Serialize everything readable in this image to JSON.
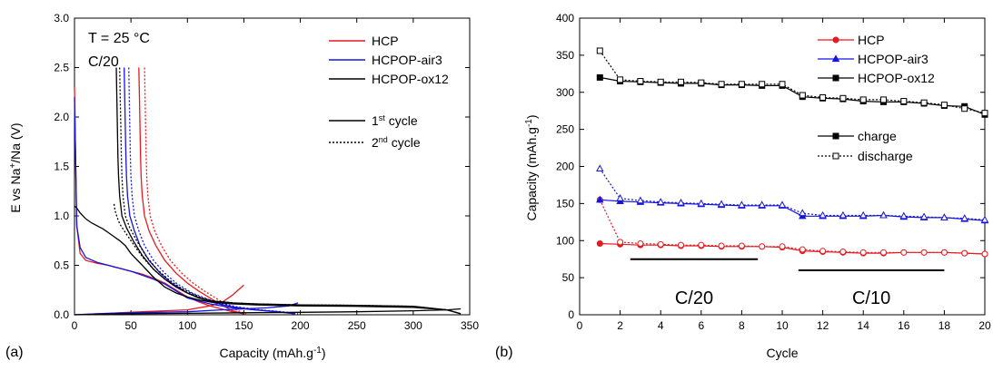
{
  "figure": {
    "panel_labels": [
      "(a)",
      "(b)"
    ]
  },
  "chart_data": [
    {
      "type": "line",
      "panel": "(a)",
      "xlabel": "Capacity (mAh.g",
      "xlabel_sup": "-1",
      "xlabel_end": ")",
      "ylabel_parts": [
        "E vs Na",
        "+",
        "/Na (V)"
      ],
      "xlim": [
        0,
        350
      ],
      "ylim": [
        0,
        3.0
      ],
      "x_ticks": [
        0,
        50,
        100,
        150,
        200,
        250,
        300,
        350
      ],
      "y_ticks": [
        "0.0",
        "0.5",
        "1.0",
        "1.5",
        "2.0",
        "2.5",
        "3.0"
      ],
      "annotations": [
        "T = 25 °C",
        "C/20"
      ],
      "legend_placement": "top-right",
      "legend_series": [
        {
          "name": "HCP",
          "color": "#e8191f"
        },
        {
          "name": "HCPOP-air3",
          "color": "#1414e0"
        },
        {
          "name": "HCPOP-ox12",
          "color": "#000000"
        }
      ],
      "legend_styles": [
        {
          "name": "1",
          "sup": "st",
          "rest": " cycle",
          "dash": "solid"
        },
        {
          "name": "2",
          "sup": "nd",
          "rest": " cycle",
          "dash": "dotted"
        }
      ],
      "series": [
        {
          "name": "HCP",
          "cycle": 1,
          "color": "#e8191f",
          "dash": "solid",
          "x": [
            0,
            2,
            5,
            10,
            20,
            30,
            40,
            50,
            60,
            70,
            80,
            90,
            100,
            110,
            120,
            130,
            140,
            150
          ],
          "y": [
            2.3,
            0.9,
            0.62,
            0.55,
            0.52,
            0.5,
            0.47,
            0.44,
            0.41,
            0.37,
            0.32,
            0.25,
            0.18,
            0.13,
            0.09,
            0.06,
            0.03,
            0.01
          ]
        },
        {
          "name": "HCP",
          "cycle": 1,
          "color": "#e8191f",
          "dash": "solid",
          "x": [
            0,
            10,
            20,
            40,
            60,
            80,
            100,
            110,
            120,
            130,
            140,
            150
          ],
          "y": [
            0.0,
            0.005,
            0.01,
            0.02,
            0.03,
            0.04,
            0.05,
            0.07,
            0.09,
            0.12,
            0.2,
            0.3
          ]
        },
        {
          "name": "HCP",
          "cycle": 1,
          "color": "#e8191f",
          "dash": "solid",
          "x": [
            57,
            57.5,
            58,
            58.5,
            59,
            60,
            62,
            66,
            72,
            80,
            90,
            100,
            110,
            120,
            130,
            140,
            150
          ],
          "y": [
            2.5,
            2.2,
            1.9,
            1.6,
            1.4,
            1.2,
            1.0,
            0.85,
            0.7,
            0.55,
            0.42,
            0.32,
            0.24,
            0.17,
            0.1,
            0.04,
            0.01
          ]
        },
        {
          "name": "HCP",
          "cycle": 2,
          "color": "#e8191f",
          "dash": "dotted",
          "x": [
            62,
            62.5,
            63,
            63.5,
            64,
            65,
            67,
            71,
            77,
            85,
            95,
            105,
            115,
            125,
            135,
            145,
            152
          ],
          "y": [
            2.5,
            2.2,
            1.9,
            1.6,
            1.4,
            1.2,
            1.0,
            0.85,
            0.7,
            0.55,
            0.42,
            0.32,
            0.24,
            0.17,
            0.1,
            0.04,
            0.01
          ]
        },
        {
          "name": "HCPOP-air3",
          "cycle": 1,
          "color": "#1414e0",
          "dash": "solid",
          "x": [
            0,
            2,
            5,
            10,
            20,
            30,
            40,
            50,
            60,
            70,
            80,
            90,
            100,
            120,
            140,
            160,
            180,
            195
          ],
          "y": [
            2.2,
            0.9,
            0.68,
            0.58,
            0.53,
            0.5,
            0.47,
            0.44,
            0.4,
            0.36,
            0.31,
            0.24,
            0.17,
            0.11,
            0.07,
            0.05,
            0.03,
            0.01
          ]
        },
        {
          "name": "HCPOP-air3",
          "cycle": 1,
          "color": "#1414e0",
          "dash": "solid",
          "x": [
            0,
            20,
            50,
            100,
            130,
            150,
            170,
            190,
            198
          ],
          "y": [
            0.0,
            0.01,
            0.02,
            0.03,
            0.05,
            0.06,
            0.07,
            0.09,
            0.12
          ]
        },
        {
          "name": "HCPOP-air3",
          "cycle": 1,
          "color": "#1414e0",
          "dash": "solid",
          "x": [
            44,
            44.5,
            45,
            45.5,
            46,
            47,
            49,
            53,
            58,
            66,
            76,
            86,
            100,
            120,
            140,
            160,
            180,
            195
          ],
          "y": [
            2.5,
            2.2,
            1.9,
            1.6,
            1.4,
            1.2,
            1.0,
            0.85,
            0.7,
            0.55,
            0.42,
            0.32,
            0.22,
            0.13,
            0.08,
            0.05,
            0.03,
            0.01
          ]
        },
        {
          "name": "HCPOP-air3",
          "cycle": 2,
          "color": "#1414e0",
          "dash": "dotted",
          "x": [
            48,
            48.5,
            49,
            49.5,
            50,
            51,
            53,
            57,
            62,
            70,
            80,
            90,
            104,
            124,
            144,
            164,
            184,
            198
          ],
          "y": [
            2.5,
            2.2,
            1.9,
            1.6,
            1.4,
            1.2,
            1.0,
            0.85,
            0.7,
            0.55,
            0.42,
            0.32,
            0.22,
            0.13,
            0.08,
            0.05,
            0.03,
            0.01
          ]
        },
        {
          "name": "HCPOP-ox12",
          "cycle": 1,
          "color": "#000000",
          "dash": "solid",
          "x": [
            0,
            2,
            5,
            10,
            15,
            20,
            25,
            30,
            35,
            40,
            45,
            50,
            60,
            70,
            80,
            90,
            100,
            110,
            120,
            140,
            160,
            200,
            250,
            300,
            330,
            342
          ],
          "y": [
            1.1,
            1.08,
            1.03,
            0.97,
            0.93,
            0.9,
            0.87,
            0.83,
            0.79,
            0.75,
            0.7,
            0.62,
            0.5,
            0.38,
            0.28,
            0.22,
            0.18,
            0.15,
            0.13,
            0.11,
            0.1,
            0.09,
            0.085,
            0.075,
            0.05,
            0.01
          ]
        },
        {
          "name": "HCPOP-ox12",
          "cycle": 1,
          "color": "#000000",
          "dash": "solid",
          "x": [
            37,
            37.5,
            38,
            38.5,
            39,
            40,
            42,
            46,
            52,
            60,
            70,
            80,
            90,
            100,
            110,
            120,
            140,
            160,
            200,
            250,
            300,
            330,
            342
          ],
          "y": [
            2.5,
            2.2,
            1.9,
            1.6,
            1.4,
            1.2,
            1.0,
            0.88,
            0.75,
            0.6,
            0.46,
            0.36,
            0.28,
            0.22,
            0.17,
            0.14,
            0.12,
            0.11,
            0.1,
            0.095,
            0.085,
            0.05,
            0.01
          ]
        },
        {
          "name": "HCPOP-ox12",
          "cycle": 1,
          "color": "#000000",
          "dash": "solid",
          "x": [
            0,
            50,
            100,
            150,
            200,
            250,
            300,
            330,
            342
          ],
          "y": [
            0.0,
            0.01,
            0.015,
            0.02,
            0.025,
            0.03,
            0.04,
            0.05,
            0.06
          ]
        },
        {
          "name": "HCPOP-ox12",
          "cycle": 2,
          "color": "#000000",
          "dash": "dotted",
          "x": [
            35,
            36,
            38,
            40,
            44,
            50,
            56,
            62,
            70,
            80,
            90,
            100,
            110,
            120,
            140,
            160,
            200,
            250,
            300,
            330,
            342
          ],
          "y": [
            1.12,
            1.05,
            0.98,
            0.92,
            0.85,
            0.75,
            0.65,
            0.56,
            0.46,
            0.36,
            0.28,
            0.22,
            0.17,
            0.14,
            0.12,
            0.11,
            0.1,
            0.095,
            0.085,
            0.05,
            0.01
          ]
        },
        {
          "name": "HCPOP-ox12",
          "cycle": 2,
          "color": "#000000",
          "dash": "dotted",
          "x": [
            40,
            40.5,
            41,
            41.5,
            42,
            43,
            45,
            49,
            55,
            63,
            73,
            83,
            93,
            103,
            113,
            123,
            140
          ],
          "y": [
            2.5,
            2.2,
            1.9,
            1.6,
            1.4,
            1.2,
            1.0,
            0.88,
            0.75,
            0.6,
            0.46,
            0.36,
            0.28,
            0.22,
            0.17,
            0.14,
            0.12
          ]
        }
      ]
    },
    {
      "type": "line",
      "panel": "(b)",
      "xlabel": "Cycle",
      "ylabel": "Capacity (mAh.g",
      "ylabel_sup": "-1",
      "ylabel_end": ")",
      "xlim": [
        0,
        20
      ],
      "ylim": [
        0,
        400
      ],
      "x_ticks": [
        0,
        2,
        4,
        6,
        8,
        10,
        12,
        14,
        16,
        18,
        20
      ],
      "y_ticks": [
        0,
        50,
        100,
        150,
        200,
        250,
        300,
        350,
        400
      ],
      "legend_placement": "top-right",
      "legend_series": [
        {
          "name": "HCP",
          "color": "#e8191f",
          "marker": "circle"
        },
        {
          "name": "HCPOP-air3",
          "color": "#1414e0",
          "marker": "triangle"
        },
        {
          "name": "HCPOP-ox12",
          "color": "#000000",
          "marker": "square"
        }
      ],
      "legend_styles": [
        {
          "name": "charge",
          "dash": "solid",
          "filled": true
        },
        {
          "name": "discharge",
          "dash": "dotted",
          "filled": false
        }
      ],
      "rate_labels": [
        {
          "text": "C/20",
          "x_start": 2.5,
          "x_end": 8.8,
          "y": 75
        },
        {
          "text": "C/10",
          "x_start": 10.8,
          "x_end": 18.0,
          "y": 60
        }
      ],
      "x": [
        1,
        2,
        3,
        4,
        5,
        6,
        7,
        8,
        9,
        10,
        11,
        12,
        13,
        14,
        15,
        16,
        17,
        18,
        19,
        20
      ],
      "series": [
        {
          "name": "HCP",
          "type": "charge",
          "color": "#e8191f",
          "marker": "circle",
          "values": [
            96,
            95,
            94,
            94,
            93,
            93,
            92,
            92,
            92,
            91,
            86,
            85,
            84,
            83,
            83,
            84,
            84,
            84,
            83,
            82
          ]
        },
        {
          "name": "HCP",
          "type": "discharge",
          "color": "#e8191f",
          "marker": "circle",
          "values": [
            155,
            98,
            96,
            95,
            94,
            94,
            93,
            93,
            92,
            92,
            88,
            86,
            85,
            84,
            84,
            84,
            84,
            84,
            83,
            82
          ]
        },
        {
          "name": "HCPOP-air3",
          "type": "charge",
          "color": "#1414e0",
          "marker": "triangle",
          "values": [
            155,
            153,
            152,
            151,
            150,
            149,
            148,
            147,
            147,
            147,
            133,
            133,
            133,
            133,
            134,
            132,
            131,
            131,
            129,
            127
          ]
        },
        {
          "name": "HCPOP-air3",
          "type": "discharge",
          "color": "#1414e0",
          "marker": "triangle",
          "values": [
            197,
            157,
            154,
            152,
            151,
            150,
            149,
            148,
            148,
            148,
            137,
            134,
            134,
            134,
            134,
            133,
            132,
            131,
            130,
            128
          ]
        },
        {
          "name": "HCPOP-ox12",
          "type": "charge",
          "color": "#000000",
          "marker": "square",
          "values": [
            320,
            315,
            314,
            313,
            312,
            312,
            310,
            310,
            309,
            309,
            294,
            292,
            291,
            288,
            287,
            287,
            285,
            282,
            281,
            270
          ]
        },
        {
          "name": "HCPOP-ox12",
          "type": "discharge",
          "color": "#000000",
          "marker": "square",
          "values": [
            356,
            317,
            315,
            314,
            314,
            313,
            311,
            311,
            311,
            311,
            296,
            293,
            292,
            290,
            290,
            288,
            286,
            283,
            278,
            272
          ]
        }
      ]
    }
  ]
}
